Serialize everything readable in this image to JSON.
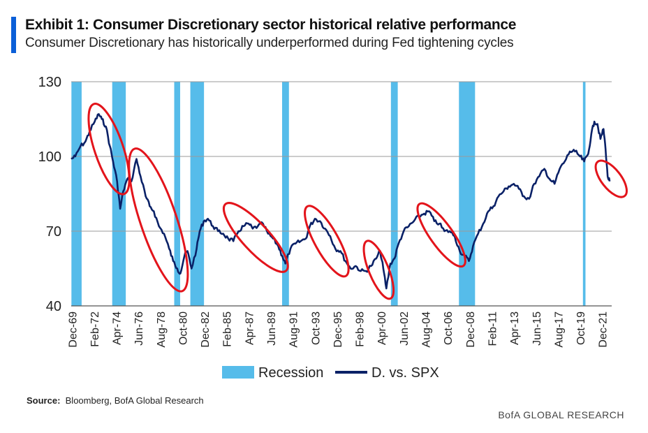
{
  "header": {
    "title": "Exhibit 1: Consumer Discretionary sector historical relative performance",
    "subtitle": "Consumer Discretionary has historically underperformed during Fed tightening cycles"
  },
  "footer": {
    "source_label": "Source:",
    "source_text": "Bloomberg,  BofA Global Research",
    "brand": "BofA GLOBAL RESEARCH"
  },
  "colors": {
    "line": "#0a2167",
    "recession": "#56bcea",
    "circle": "#e3141b",
    "grid": "#9a9a9a",
    "accent": "#0b5fd8"
  },
  "chart_data": {
    "type": "line",
    "title": "",
    "xlabel": "",
    "ylabel": "",
    "ylim": [
      40,
      130
    ],
    "xlim": [
      1969.9,
      2022.9
    ],
    "yticks": [
      40,
      70,
      100,
      130
    ],
    "xtick_labels": [
      "Dec-69",
      "Feb-72",
      "Apr-74",
      "Jun-76",
      "Aug-78",
      "Oct-80",
      "Dec-82",
      "Feb-85",
      "Apr-87",
      "Jun-89",
      "Aug-91",
      "Oct-93",
      "Dec-95",
      "Feb-98",
      "Apr-00",
      "Jun-02",
      "Aug-04",
      "Oct-06",
      "Dec-08",
      "Feb-11",
      "Apr-13",
      "Jun-15",
      "Aug-17",
      "Oct-19",
      "Dec-21"
    ],
    "xtick_years": [
      1969.92,
      1972.08,
      1974.25,
      1976.42,
      1978.58,
      1980.75,
      1982.92,
      1985.08,
      1987.25,
      1989.42,
      1991.58,
      1993.75,
      1995.92,
      1998.08,
      2000.25,
      2002.42,
      2004.58,
      2006.75,
      2008.92,
      2011.08,
      2013.25,
      2015.42,
      2017.58,
      2019.75,
      2021.92
    ],
    "grid": true,
    "legend_position": "bottom",
    "legend": [
      "Recession",
      "D. vs. SPX"
    ],
    "recessions": [
      [
        1969.92,
        1970.92
      ],
      [
        1973.92,
        1975.25
      ],
      [
        1980.0,
        1980.58
      ],
      [
        1981.58,
        1982.92
      ],
      [
        1990.58,
        1991.25
      ],
      [
        2001.25,
        2001.92
      ],
      [
        2007.92,
        2009.5
      ],
      [
        2020.08,
        2020.33
      ]
    ],
    "series": [
      {
        "name": "D. vs. SPX",
        "x": [
          1969.9,
          1970.3,
          1970.8,
          1971.3,
          1971.7,
          1972.2,
          1972.6,
          1972.9,
          1973.3,
          1973.7,
          1974.0,
          1974.4,
          1974.7,
          1975.0,
          1975.4,
          1975.8,
          1976.3,
          1976.7,
          1977.2,
          1977.6,
          1978.0,
          1978.5,
          1979.0,
          1979.5,
          1979.9,
          1980.3,
          1980.6,
          1981.0,
          1981.3,
          1981.7,
          1982.2,
          1982.5,
          1982.9,
          1983.3,
          1983.8,
          1984.3,
          1984.8,
          1985.3,
          1985.8,
          1986.3,
          1986.8,
          1987.3,
          1987.7,
          1988.2,
          1988.7,
          1989.2,
          1989.7,
          1990.2,
          1990.6,
          1990.9,
          1991.4,
          1991.9,
          1992.4,
          1992.9,
          1993.3,
          1993.8,
          1994.3,
          1994.8,
          1995.3,
          1995.8,
          1996.3,
          1996.8,
          1997.3,
          1997.8,
          1998.3,
          1998.8,
          1999.3,
          1999.8,
          2000.2,
          2000.5,
          2000.8,
          2001.2,
          2001.6,
          2002.0,
          2002.5,
          2003.0,
          2003.5,
          2004.0,
          2004.5,
          2005.0,
          2005.5,
          2006.0,
          2006.5,
          2007.0,
          2007.5,
          2008.0,
          2008.5,
          2008.9,
          2009.3,
          2009.8,
          2010.3,
          2010.8,
          2011.3,
          2011.8,
          2012.3,
          2012.8,
          2013.3,
          2013.8,
          2014.3,
          2014.8,
          2015.3,
          2015.8,
          2016.3,
          2016.8,
          2017.3,
          2017.8,
          2018.3,
          2018.8,
          2019.3,
          2019.8,
          2020.2,
          2020.6,
          2020.9,
          2021.2,
          2021.5,
          2021.8,
          2022.1,
          2022.3,
          2022.5,
          2022.7
        ],
        "values": [
          99,
          100,
          104,
          106,
          110,
          114,
          117,
          115,
          112,
          104,
          98,
          90,
          79,
          86,
          91,
          90,
          99,
          92,
          84,
          80,
          78,
          72,
          69,
          63,
          58,
          55,
          53,
          60,
          62,
          55,
          63,
          70,
          74,
          75,
          72,
          70,
          69,
          67,
          66,
          70,
          72,
          73,
          71,
          72,
          73,
          69,
          67,
          64,
          60,
          57,
          63,
          65,
          66,
          67,
          72,
          75,
          74,
          71,
          68,
          63,
          62,
          58,
          55,
          56,
          54,
          54,
          56,
          59,
          62,
          55,
          47,
          57,
          59,
          65,
          70,
          72,
          74,
          76,
          77,
          78,
          74,
          73,
          70,
          70,
          68,
          62,
          60,
          58,
          64,
          69,
          73,
          78,
          80,
          84,
          86,
          88,
          89,
          87,
          84,
          83,
          89,
          92,
          95,
          91,
          89,
          95,
          98,
          102,
          102,
          100,
          98,
          101,
          109,
          114,
          113,
          107,
          111,
          103,
          92,
          90
        ]
      }
    ],
    "annotations": {
      "circles": [
        {
          "start": 1972.2,
          "end": 1975.0,
          "y_start": 120,
          "y_end": 86
        },
        {
          "start": 1976.2,
          "end": 1980.7,
          "y_start": 102,
          "y_end": 47
        },
        {
          "start": 1985.2,
          "end": 1990.8,
          "y_start": 80,
          "y_end": 55
        },
        {
          "start": 1993.2,
          "end": 1996.7,
          "y_start": 79,
          "y_end": 53
        },
        {
          "start": 1999.0,
          "end": 2001.1,
          "y_start": 65,
          "y_end": 44
        },
        {
          "start": 2004.2,
          "end": 2008.2,
          "y_start": 80,
          "y_end": 57
        },
        {
          "start": 2021.7,
          "end": 2024.0,
          "y_start": 97,
          "y_end": 85
        }
      ]
    }
  }
}
